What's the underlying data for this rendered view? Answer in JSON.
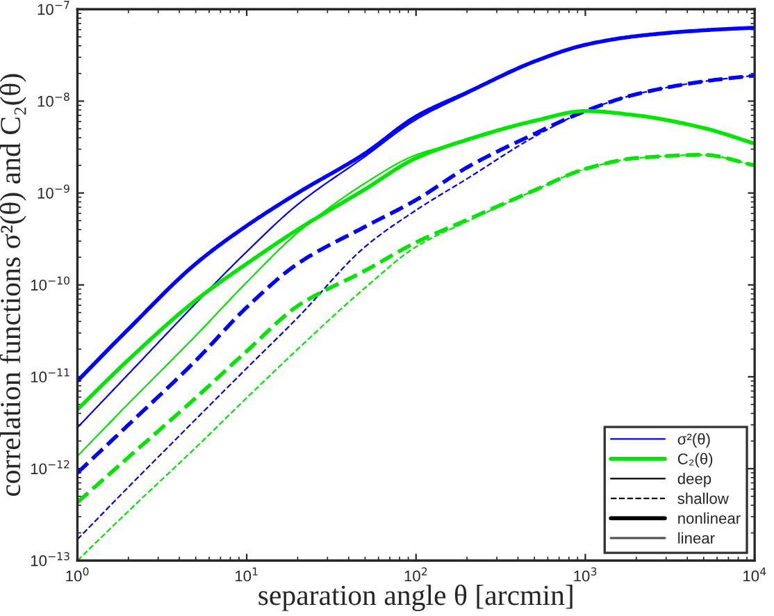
{
  "chart_data": {
    "type": "line",
    "xlabel": "separation angle θ [arcmin]",
    "ylabel": "correlation functions σ²(θ) and C₂(θ)",
    "x": [
      1,
      2,
      5,
      10,
      20,
      50,
      100,
      200,
      500,
      1000,
      2000,
      5000,
      10000
    ],
    "log": "xy",
    "xlim": [
      1,
      10000
    ],
    "ylim": [
      1e-13,
      1e-07
    ],
    "xticks": [
      {
        "value": 1,
        "label": "10$^{0}$"
      },
      {
        "value": 10,
        "label": "10$^{1}$"
      },
      {
        "value": 100,
        "label": "10$^{2}$"
      },
      {
        "value": 1000,
        "label": "10$^{3}$"
      },
      {
        "value": 10000,
        "label": "10$^{4}$"
      }
    ],
    "yticks": [
      {
        "value": 1e-13,
        "label": "10$^{−13}$"
      },
      {
        "value": 1e-12,
        "label": "10$^{−12}$"
      },
      {
        "value": 1e-11,
        "label": "10$^{−11}$"
      },
      {
        "value": 1e-10,
        "label": "10$^{−10}$"
      },
      {
        "value": 1e-09,
        "label": "10$^{−9}$"
      },
      {
        "value": 1e-08,
        "label": "10$^{−8}$"
      },
      {
        "value": 1e-07,
        "label": "10$^{−7}$"
      }
    ],
    "grid": false,
    "legend": "bottom right",
    "marker": "none",
    "series": [
      {
        "color": "#0000ff",
        "line_style": "solid",
        "values": [
          9e-12,
          3.3e-11,
          1.7e-10,
          4.4e-10,
          1e-09,
          2.7e-09,
          6.8e-09,
          1.24e-08,
          2.7e-08,
          4.1e-08,
          5.1e-08,
          5.9e-08,
          6.3e-08
        ]
      },
      {
        "color": "#0000ff",
        "line_style": "solid",
        "values": [
          2.8e-12,
          1.07e-11,
          6.3e-11,
          2.3e-10,
          7.5e-10,
          2.5e-09,
          6.3e-09,
          1.2e-08,
          2.7e-08,
          4.1e-08,
          5.1e-08,
          5.9e-08,
          6.3e-08
        ]
      },
      {
        "color": "#0000ff",
        "line_style": "dashed",
        "values": [
          9e-13,
          3e-12,
          1.5e-11,
          5.7e-11,
          1.7e-10,
          4.3e-10,
          8.4e-10,
          1.9e-09,
          4.4e-09,
          7.8e-09,
          1.19e-08,
          1.64e-08,
          1.9e-08
        ]
      },
      {
        "color": "#0000ff",
        "line_style": "dashed",
        "values": [
          1.7e-13,
          6.3e-13,
          3.45e-12,
          1.24e-11,
          4.4e-11,
          2.6e-10,
          6.5e-10,
          1.43e-09,
          4.1e-09,
          7.8e-09,
          1.19e-08,
          1.64e-08,
          1.9e-08
        ]
      },
      {
        "color": "#00e600",
        "line_style": "solid",
        "values": [
          4.4e-12,
          1.53e-11,
          6.8e-11,
          1.7e-10,
          4e-10,
          1.1e-09,
          2.4e-09,
          3.8e-09,
          6.1e-09,
          7.8e-09,
          7e-09,
          5.1e-09,
          3.45e-09
        ]
      },
      {
        "color": "#00e600",
        "line_style": "solid",
        "values": [
          1.37e-12,
          5.1e-12,
          2.8e-11,
          1.07e-10,
          3.7e-10,
          1.28e-09,
          2.6e-09,
          3.7e-09,
          6.1e-09,
          7.8e-09,
          7e-09,
          5.1e-09,
          3.45e-09
        ]
      },
      {
        "color": "#00e600",
        "line_style": "dashed",
        "values": [
          4.3e-13,
          1.33e-12,
          5.9e-12,
          1.9e-11,
          5.9e-11,
          1.43e-10,
          2.9e-10,
          5.1e-10,
          1.07e-09,
          1.83e-09,
          2.4e-09,
          2.6e-09,
          2e-09
        ]
      },
      {
        "color": "#00e600",
        "line_style": "dashed",
        "values": [
          1e-13,
          3.45e-13,
          1.7e-12,
          5.9e-12,
          2e-11,
          9.3e-11,
          2.6e-10,
          4.9e-10,
          1.07e-09,
          1.83e-09,
          2.4e-09,
          2.6e-09,
          2e-09
        ]
      },
      {
        "name": "σ²(θ)",
        "color": "#0000ff",
        "line_style": "solid",
        "values": [
          null,
          null,
          null,
          null,
          null,
          null,
          null,
          null,
          null,
          null,
          null,
          null,
          null
        ]
      },
      {
        "name": "C₂(θ)",
        "color": "#00e600",
        "line_style": "solid",
        "values": [
          null,
          null,
          null,
          null,
          null,
          null,
          null,
          null,
          null,
          null,
          null,
          null,
          null
        ]
      },
      {
        "name": "deep",
        "color": "#000000",
        "line_style": "solid",
        "values": [
          null,
          null,
          null,
          null,
          null,
          null,
          null,
          null,
          null,
          null,
          null,
          null,
          null
        ]
      },
      {
        "name": "shallow",
        "color": "#000000",
        "line_style": "dashed",
        "values": [
          null,
          null,
          null,
          null,
          null,
          null,
          null,
          null,
          null,
          null,
          null,
          null,
          null
        ]
      },
      {
        "name": "nonlinear",
        "color": "#000000",
        "line_style": "solid",
        "values": [
          null,
          null,
          null,
          null,
          null,
          null,
          null,
          null,
          null,
          null,
          null,
          null,
          null
        ]
      },
      {
        "name": "linear",
        "color": "#555555",
        "line_style": "solid",
        "values": [
          null,
          null,
          null,
          null,
          null,
          null,
          null,
          null,
          null,
          null,
          null,
          null,
          null
        ]
      }
    ]
  }
}
